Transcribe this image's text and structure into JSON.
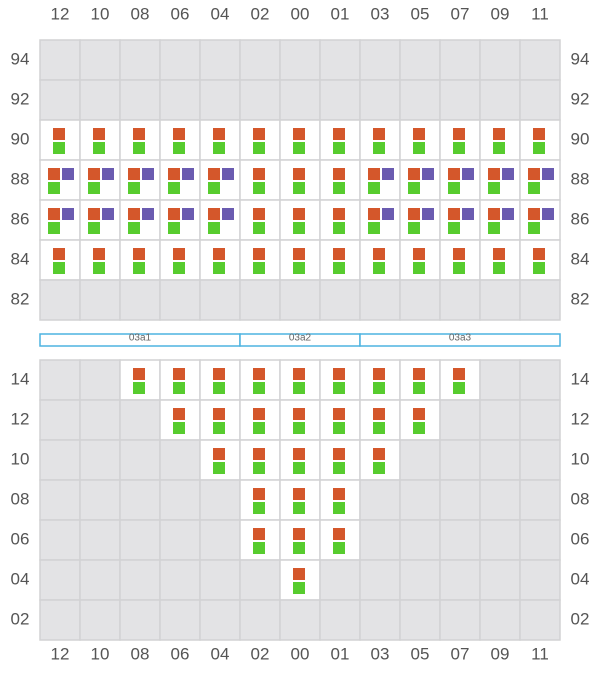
{
  "columns": [
    "12",
    "10",
    "08",
    "06",
    "04",
    "02",
    "00",
    "01",
    "03",
    "05",
    "07",
    "09",
    "11"
  ],
  "top_rows": [
    "94",
    "92",
    "90",
    "88",
    "86",
    "84",
    "82"
  ],
  "sections": [
    {
      "label": "03a1"
    },
    {
      "label": "03a2"
    },
    {
      "label": "03a3"
    }
  ],
  "bottom_rows": [
    "14",
    "12",
    "10",
    "08",
    "06",
    "04",
    "02"
  ]
}
